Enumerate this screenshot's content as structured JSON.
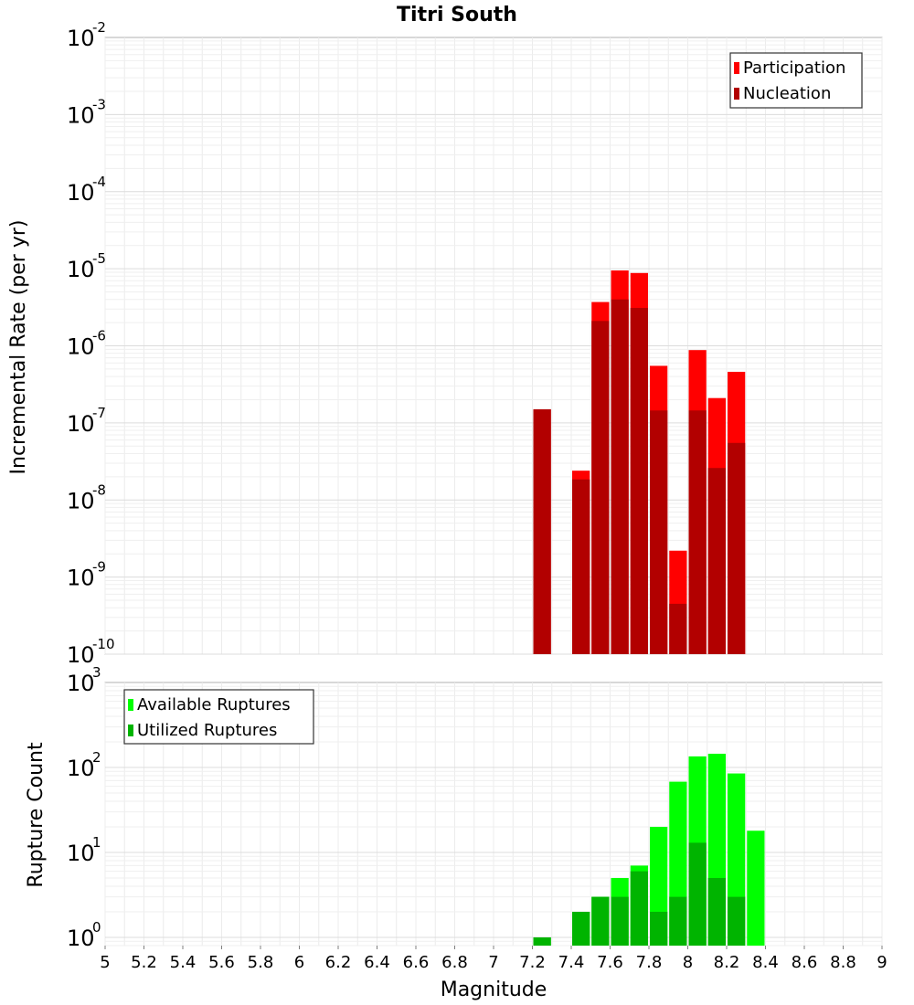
{
  "title": "Titri South",
  "chart_data": [
    {
      "type": "bar",
      "ylabel": "Incremental Rate (per yr)",
      "xlabel": "",
      "y_scale": "log",
      "ylim": [
        1e-10,
        0.01
      ],
      "xlim": [
        5,
        9
      ],
      "grid": true,
      "legend_position": "top-right",
      "y_ticks": [
        {
          "base": "10",
          "exp": "-10",
          "value": 1e-10
        },
        {
          "base": "10",
          "exp": "-9",
          "value": 1e-09
        },
        {
          "base": "10",
          "exp": "-8",
          "value": 1e-08
        },
        {
          "base": "10",
          "exp": "-7",
          "value": 1e-07
        },
        {
          "base": "10",
          "exp": "-6",
          "value": 1e-06
        },
        {
          "base": "10",
          "exp": "-5",
          "value": 1e-05
        },
        {
          "base": "10",
          "exp": "-4",
          "value": 0.0001
        },
        {
          "base": "10",
          "exp": "-3",
          "value": 0.001
        },
        {
          "base": "10",
          "exp": "-2",
          "value": 0.01
        }
      ],
      "series": [
        {
          "name": "Participation",
          "color": "#ff0000",
          "x": [
            7.25,
            7.45,
            7.55,
            7.65,
            7.75,
            7.85,
            7.95,
            8.05,
            8.15,
            8.25
          ],
          "values": [
            1.5e-07,
            2.4e-08,
            3.7e-06,
            9.5e-06,
            8.8e-06,
            5.5e-07,
            2.2e-09,
            8.8e-07,
            2.1e-07,
            4.6e-07
          ]
        },
        {
          "name": "Nucleation",
          "color": "#b20000",
          "x": [
            7.25,
            7.45,
            7.55,
            7.65,
            7.75,
            7.85,
            7.95,
            8.05,
            8.15,
            8.25
          ],
          "values": [
            1.5e-07,
            1.85e-08,
            2.1e-06,
            4e-06,
            3.1e-06,
            1.45e-07,
            4.5e-10,
            1.45e-07,
            2.6e-08,
            5.5e-08
          ]
        }
      ]
    },
    {
      "type": "bar",
      "ylabel": "Rupture Count",
      "xlabel": "Magnitude",
      "y_scale": "log",
      "ylim": [
        0.8,
        1000
      ],
      "xlim": [
        5,
        9
      ],
      "grid": true,
      "legend_position": "top-left",
      "y_ticks": [
        {
          "base": "10",
          "exp": "0",
          "value": 1
        },
        {
          "base": "10",
          "exp": "1",
          "value": 10
        },
        {
          "base": "10",
          "exp": "2",
          "value": 100
        },
        {
          "base": "10",
          "exp": "3",
          "value": 1000
        }
      ],
      "x_ticks": [
        "5",
        "5.2",
        "5.4",
        "5.6",
        "5.8",
        "6",
        "6.2",
        "6.4",
        "6.6",
        "6.8",
        "7",
        "7.2",
        "7.4",
        "7.6",
        "7.8",
        "8",
        "8.2",
        "8.4",
        "8.6",
        "8.8",
        "9"
      ],
      "series": [
        {
          "name": "Available Ruptures",
          "color": "#00ff00",
          "x": [
            7.25,
            7.45,
            7.55,
            7.65,
            7.75,
            7.85,
            7.95,
            8.05,
            8.15,
            8.25,
            8.35
          ],
          "values": [
            1,
            2,
            3,
            5,
            7,
            20,
            68,
            135,
            145,
            85,
            18
          ]
        },
        {
          "name": "Utilized Ruptures",
          "color": "#00b400",
          "x": [
            7.25,
            7.45,
            7.55,
            7.65,
            7.75,
            7.85,
            7.95,
            8.05,
            8.15,
            8.25,
            8.35
          ],
          "values": [
            1,
            2,
            3,
            3,
            6,
            2,
            3,
            13,
            5,
            3,
            0
          ]
        }
      ]
    }
  ]
}
